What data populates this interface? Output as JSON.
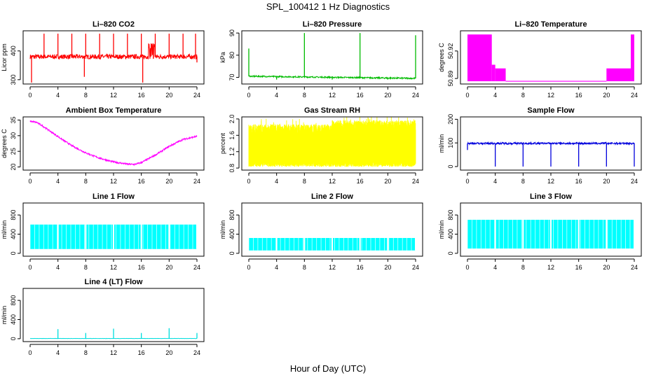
{
  "figure": {
    "title": "SPL_100412  1 Hz Diagnostics",
    "xlabel": "Hour of Day (UTC)"
  },
  "chart_data": [
    {
      "type": "line",
      "title": "Li–820 CO2",
      "ylabel": "Licor ppm",
      "color": "#ff0000",
      "xlim": [
        0,
        24
      ],
      "x_ticks": [
        0,
        4,
        8,
        12,
        16,
        20,
        24
      ],
      "ylim": [
        285,
        470
      ],
      "y_ticks": [
        300,
        400
      ],
      "baseline": 380,
      "noise": 8,
      "spikes": [
        [
          0.2,
          290
        ],
        [
          2,
          460
        ],
        [
          4,
          460
        ],
        [
          6,
          460
        ],
        [
          7.8,
          310
        ],
        [
          8,
          460
        ],
        [
          10,
          460
        ],
        [
          12,
          460
        ],
        [
          14,
          460
        ],
        [
          16,
          460
        ],
        [
          16.2,
          290
        ],
        [
          18,
          460
        ],
        [
          20,
          460
        ],
        [
          22,
          460
        ],
        [
          23.8,
          460
        ],
        [
          24,
          360
        ]
      ],
      "busy": [
        [
          17,
          18,
          400,
          430
        ]
      ]
    },
    {
      "type": "line",
      "title": "Li–820 Pressure",
      "ylabel": "kPa",
      "color": "#00bb00",
      "xlim": [
        0,
        24
      ],
      "x_ticks": [
        0,
        4,
        8,
        12,
        16,
        20,
        24
      ],
      "ylim": [
        67,
        91
      ],
      "y_ticks": [
        70,
        80,
        90
      ],
      "baseline": 70.5,
      "noise": 0.3,
      "drift": -0.04,
      "spikes": [
        [
          0,
          83
        ],
        [
          8,
          90
        ],
        [
          16,
          90
        ],
        [
          24,
          89
        ],
        [
          4,
          69
        ],
        [
          12,
          69
        ],
        [
          20,
          69
        ]
      ],
      "busy": []
    },
    {
      "type": "band",
      "title": "Li–820 Temperature",
      "ylabel": "degrees C",
      "color": "#ff00ff",
      "xlim": [
        0,
        24
      ],
      "x_ticks": [
        0,
        4,
        8,
        12,
        16,
        20,
        24
      ],
      "ylim": [
        50.884,
        50.942
      ],
      "y_ticks": [
        50.89,
        50.92
      ],
      "y_tick_labels": [
        "50.89",
        "50.92"
      ],
      "base": 50.887,
      "bands": [
        [
          0,
          3.5,
          50.887,
          50.938
        ],
        [
          3.5,
          4.0,
          50.887,
          50.905
        ],
        [
          4.0,
          5.5,
          50.887,
          50.901
        ],
        [
          20,
          23.5,
          50.887,
          50.901
        ],
        [
          23.5,
          24,
          50.887,
          50.938
        ]
      ]
    },
    {
      "type": "line",
      "title": "Ambient Box Temperature",
      "ylabel": "degrees C",
      "color": "#ff00ff",
      "xlim": [
        0,
        24
      ],
      "x_ticks": [
        0,
        4,
        8,
        12,
        16,
        20,
        24
      ],
      "ylim": [
        19,
        36
      ],
      "y_ticks": [
        20,
        25,
        30,
        35
      ],
      "curve": [
        [
          0,
          34.6
        ],
        [
          1,
          34.2
        ],
        [
          2,
          32.8
        ],
        [
          4,
          29.7
        ],
        [
          6,
          26.8
        ],
        [
          8,
          24.5
        ],
        [
          10,
          22.8
        ],
        [
          12,
          21.6
        ],
        [
          14,
          20.9
        ],
        [
          15,
          20.8
        ],
        [
          16,
          21.4
        ],
        [
          18,
          23.8
        ],
        [
          20,
          26.6
        ],
        [
          22,
          28.8
        ],
        [
          24,
          29.8
        ]
      ],
      "noise": 0.25,
      "spikes": [],
      "busy": []
    },
    {
      "type": "band",
      "title": "Gas Stream RH",
      "ylabel": "percent",
      "color": "#ffff00",
      "xlim": [
        0,
        24
      ],
      "x_ticks": [
        0,
        4,
        8,
        12,
        16,
        20,
        24
      ],
      "ylim": [
        0.75,
        2.05
      ],
      "y_ticks": [
        0.8,
        1.2,
        1.6,
        2.0
      ],
      "y_tick_labels": [
        "0.8",
        "1.2",
        "1.6",
        "2.0"
      ],
      "base": 1.0,
      "bands": [
        [
          0,
          12,
          0.95,
          1.75
        ],
        [
          12,
          24,
          0.95,
          1.85
        ]
      ],
      "ragged": 0.12
    },
    {
      "type": "line",
      "title": "Sample Flow",
      "ylabel": "ml/min",
      "color": "#0000dd",
      "xlim": [
        0,
        24
      ],
      "x_ticks": [
        0,
        4,
        8,
        12,
        16,
        20,
        24
      ],
      "ylim": [
        -15,
        210
      ],
      "y_ticks": [
        0,
        100,
        200
      ],
      "baseline": 98,
      "noise": 4,
      "spikes": [
        [
          0,
          70
        ],
        [
          4,
          0
        ],
        [
          8,
          0
        ],
        [
          12,
          0
        ],
        [
          16,
          0
        ],
        [
          20,
          0
        ],
        [
          24,
          0
        ]
      ],
      "busy": []
    },
    {
      "type": "band",
      "title": "Line 1 Flow",
      "ylabel": "ml/min",
      "color": "#00ffff",
      "xlim": [
        0,
        24
      ],
      "x_ticks": [
        0,
        4,
        8,
        12,
        16,
        20,
        24
      ],
      "ylim": [
        -60,
        1050
      ],
      "y_ticks": [
        0,
        400,
        800
      ],
      "base": 90,
      "bands": [
        [
          0,
          24,
          90,
          600
        ]
      ],
      "gaps": [
        4,
        8,
        12,
        16,
        20,
        24
      ]
    },
    {
      "type": "band",
      "title": "Line 2 Flow",
      "ylabel": "ml/min",
      "color": "#00ffff",
      "xlim": [
        0,
        24
      ],
      "x_ticks": [
        0,
        4,
        8,
        12,
        16,
        20,
        24
      ],
      "ylim": [
        -60,
        1050
      ],
      "y_ticks": [
        0,
        400,
        800
      ],
      "base": 60,
      "bands": [
        [
          0,
          24,
          60,
          320
        ]
      ],
      "gaps": [
        4,
        8,
        12,
        16,
        20,
        24
      ]
    },
    {
      "type": "band",
      "title": "Line 3 Flow",
      "ylabel": "ml/min",
      "color": "#00ffff",
      "xlim": [
        0,
        24
      ],
      "x_ticks": [
        0,
        4,
        8,
        12,
        16,
        20,
        24
      ],
      "ylim": [
        -60,
        1050
      ],
      "y_ticks": [
        0,
        400,
        800
      ],
      "base": 100,
      "bands": [
        [
          0,
          24,
          100,
          700
        ]
      ],
      "gaps": [
        4,
        8,
        12,
        16,
        20,
        24
      ]
    },
    {
      "type": "line",
      "title": "Line 4 (LT) Flow",
      "ylabel": "ml/min",
      "color": "#00dddd",
      "xlim": [
        0,
        24
      ],
      "x_ticks": [
        0,
        4,
        8,
        12,
        16,
        20,
        24
      ],
      "ylim": [
        -60,
        1050
      ],
      "y_ticks": [
        0,
        400,
        800
      ],
      "baseline": 5,
      "noise": 2,
      "spikes": [
        [
          4,
          200
        ],
        [
          8,
          120
        ],
        [
          12,
          210
        ],
        [
          16,
          120
        ],
        [
          20,
          220
        ],
        [
          24,
          120
        ]
      ],
      "busy": []
    }
  ]
}
